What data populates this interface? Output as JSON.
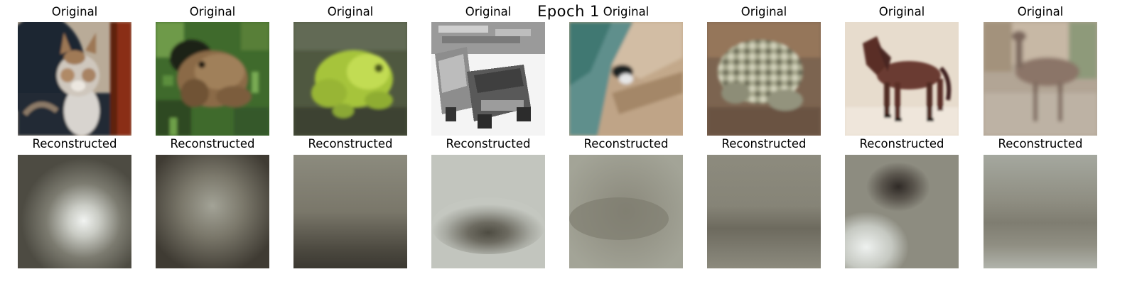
{
  "title": "Epoch 1",
  "columns": [
    {
      "original_label": "Original",
      "reconstructed_label": "Reconstructed"
    },
    {
      "original_label": "Original",
      "reconstructed_label": "Reconstructed"
    },
    {
      "original_label": "Original",
      "reconstructed_label": "Reconstructed"
    },
    {
      "original_label": "Original",
      "reconstructed_label": "Reconstructed"
    },
    {
      "original_label": "Original",
      "reconstructed_label": "Reconstructed"
    },
    {
      "original_label": "Original",
      "reconstructed_label": "Reconstructed"
    },
    {
      "original_label": "Original",
      "reconstructed_label": "Reconstructed"
    },
    {
      "original_label": "Original",
      "reconstructed_label": "Reconstructed"
    }
  ]
}
